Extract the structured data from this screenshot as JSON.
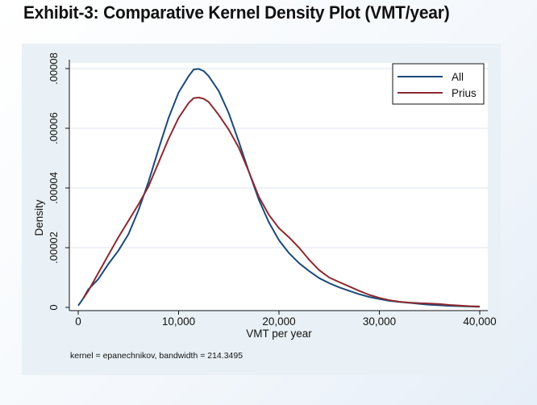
{
  "page": {
    "title": "Exhibit-3: Comparative Kernel Density Plot (VMT/year)"
  },
  "chart_data": {
    "type": "line",
    "title": "",
    "xlabel": "VMT per year",
    "ylabel": "Density",
    "xlim": [
      0,
      40000
    ],
    "ylim": [
      0,
      8e-05
    ],
    "x_ticks": [
      {
        "value": 0,
        "label": "0"
      },
      {
        "value": 10000,
        "label": "10,000"
      },
      {
        "value": 20000,
        "label": "20,000"
      },
      {
        "value": 30000,
        "label": "30,000"
      },
      {
        "value": 40000,
        "label": "40,000"
      }
    ],
    "y_ticks": [
      {
        "value": 0,
        "label": "0"
      },
      {
        "value": 2e-05,
        "label": ".00002"
      },
      {
        "value": 4e-05,
        "label": ".00004"
      },
      {
        "value": 6e-05,
        "label": ".00006"
      },
      {
        "value": 8e-05,
        "label": ".00008"
      }
    ],
    "grid": "horizontal",
    "legend_position": "top-right",
    "note": "kernel = epanechnikov, bandwidth = 214.3495",
    "series": [
      {
        "name": "All",
        "color": "#1a4a7a",
        "points": [
          [
            0,
            6e-07
          ],
          [
            500,
            3e-06
          ],
          [
            1000,
            6e-06
          ],
          [
            2000,
            9.5e-06
          ],
          [
            3000,
            1.45e-05
          ],
          [
            4000,
            1.9e-05
          ],
          [
            5000,
            2.45e-05
          ],
          [
            6000,
            3.25e-05
          ],
          [
            7000,
            4.2e-05
          ],
          [
            8000,
            5.3e-05
          ],
          [
            9000,
            6.35e-05
          ],
          [
            10000,
            7.2e-05
          ],
          [
            11000,
            7.75e-05
          ],
          [
            11500,
            7.97e-05
          ],
          [
            12000,
            7.99e-05
          ],
          [
            12500,
            7.92e-05
          ],
          [
            13000,
            7.75e-05
          ],
          [
            14000,
            7.25e-05
          ],
          [
            15000,
            6.5e-05
          ],
          [
            16000,
            5.55e-05
          ],
          [
            17000,
            4.55e-05
          ],
          [
            18000,
            3.6e-05
          ],
          [
            19000,
            2.85e-05
          ],
          [
            20000,
            2.25e-05
          ],
          [
            21000,
            1.82e-05
          ],
          [
            22000,
            1.48e-05
          ],
          [
            23000,
            1.22e-05
          ],
          [
            24000,
            9.8e-06
          ],
          [
            25000,
            8.1e-06
          ],
          [
            26000,
            6.7e-06
          ],
          [
            27000,
            5.5e-06
          ],
          [
            28000,
            4.4e-06
          ],
          [
            29000,
            3.5e-06
          ],
          [
            30000,
            2.8e-06
          ],
          [
            31000,
            2.2e-06
          ],
          [
            32000,
            1.8e-06
          ],
          [
            33000,
            1.5e-06
          ],
          [
            34000,
            1.2e-06
          ],
          [
            35000,
            9e-07
          ],
          [
            36000,
            7e-07
          ],
          [
            37000,
            5e-07
          ],
          [
            38000,
            4e-07
          ],
          [
            39000,
            3e-07
          ],
          [
            40000,
            2e-07
          ]
        ]
      },
      {
        "name": "Prius",
        "color": "#8b2a30",
        "points": [
          [
            500,
            3e-06
          ],
          [
            1000,
            5.5e-06
          ],
          [
            2000,
            1.15e-05
          ],
          [
            3000,
            1.75e-05
          ],
          [
            4000,
            2.35e-05
          ],
          [
            5000,
            2.9e-05
          ],
          [
            6000,
            3.45e-05
          ],
          [
            7000,
            4.05e-05
          ],
          [
            8000,
            4.85e-05
          ],
          [
            9000,
            5.65e-05
          ],
          [
            10000,
            6.35e-05
          ],
          [
            11000,
            6.85e-05
          ],
          [
            11500,
            7.01e-05
          ],
          [
            12000,
            7.03e-05
          ],
          [
            12500,
            6.99e-05
          ],
          [
            13000,
            6.88e-05
          ],
          [
            14000,
            6.45e-05
          ],
          [
            15000,
            5.95e-05
          ],
          [
            16000,
            5.35e-05
          ],
          [
            17000,
            4.55e-05
          ],
          [
            18000,
            3.7e-05
          ],
          [
            19000,
            3.1e-05
          ],
          [
            20000,
            2.65e-05
          ],
          [
            21000,
            2.35e-05
          ],
          [
            22000,
            2e-05
          ],
          [
            23000,
            1.6e-05
          ],
          [
            24000,
            1.25e-05
          ],
          [
            25000,
            1e-05
          ],
          [
            26000,
            8.5e-06
          ],
          [
            27000,
            7e-06
          ],
          [
            28000,
            5.5e-06
          ],
          [
            29000,
            4.2e-06
          ],
          [
            30000,
            3.2e-06
          ],
          [
            31000,
            2.4e-06
          ],
          [
            32000,
            1.9e-06
          ],
          [
            33000,
            1.6e-06
          ],
          [
            34000,
            1.4e-06
          ],
          [
            35000,
            1.3e-06
          ],
          [
            36000,
            1.1e-06
          ],
          [
            37000,
            8e-07
          ],
          [
            38000,
            6e-07
          ],
          [
            39000,
            4e-07
          ],
          [
            40000,
            3e-07
          ]
        ]
      }
    ]
  }
}
